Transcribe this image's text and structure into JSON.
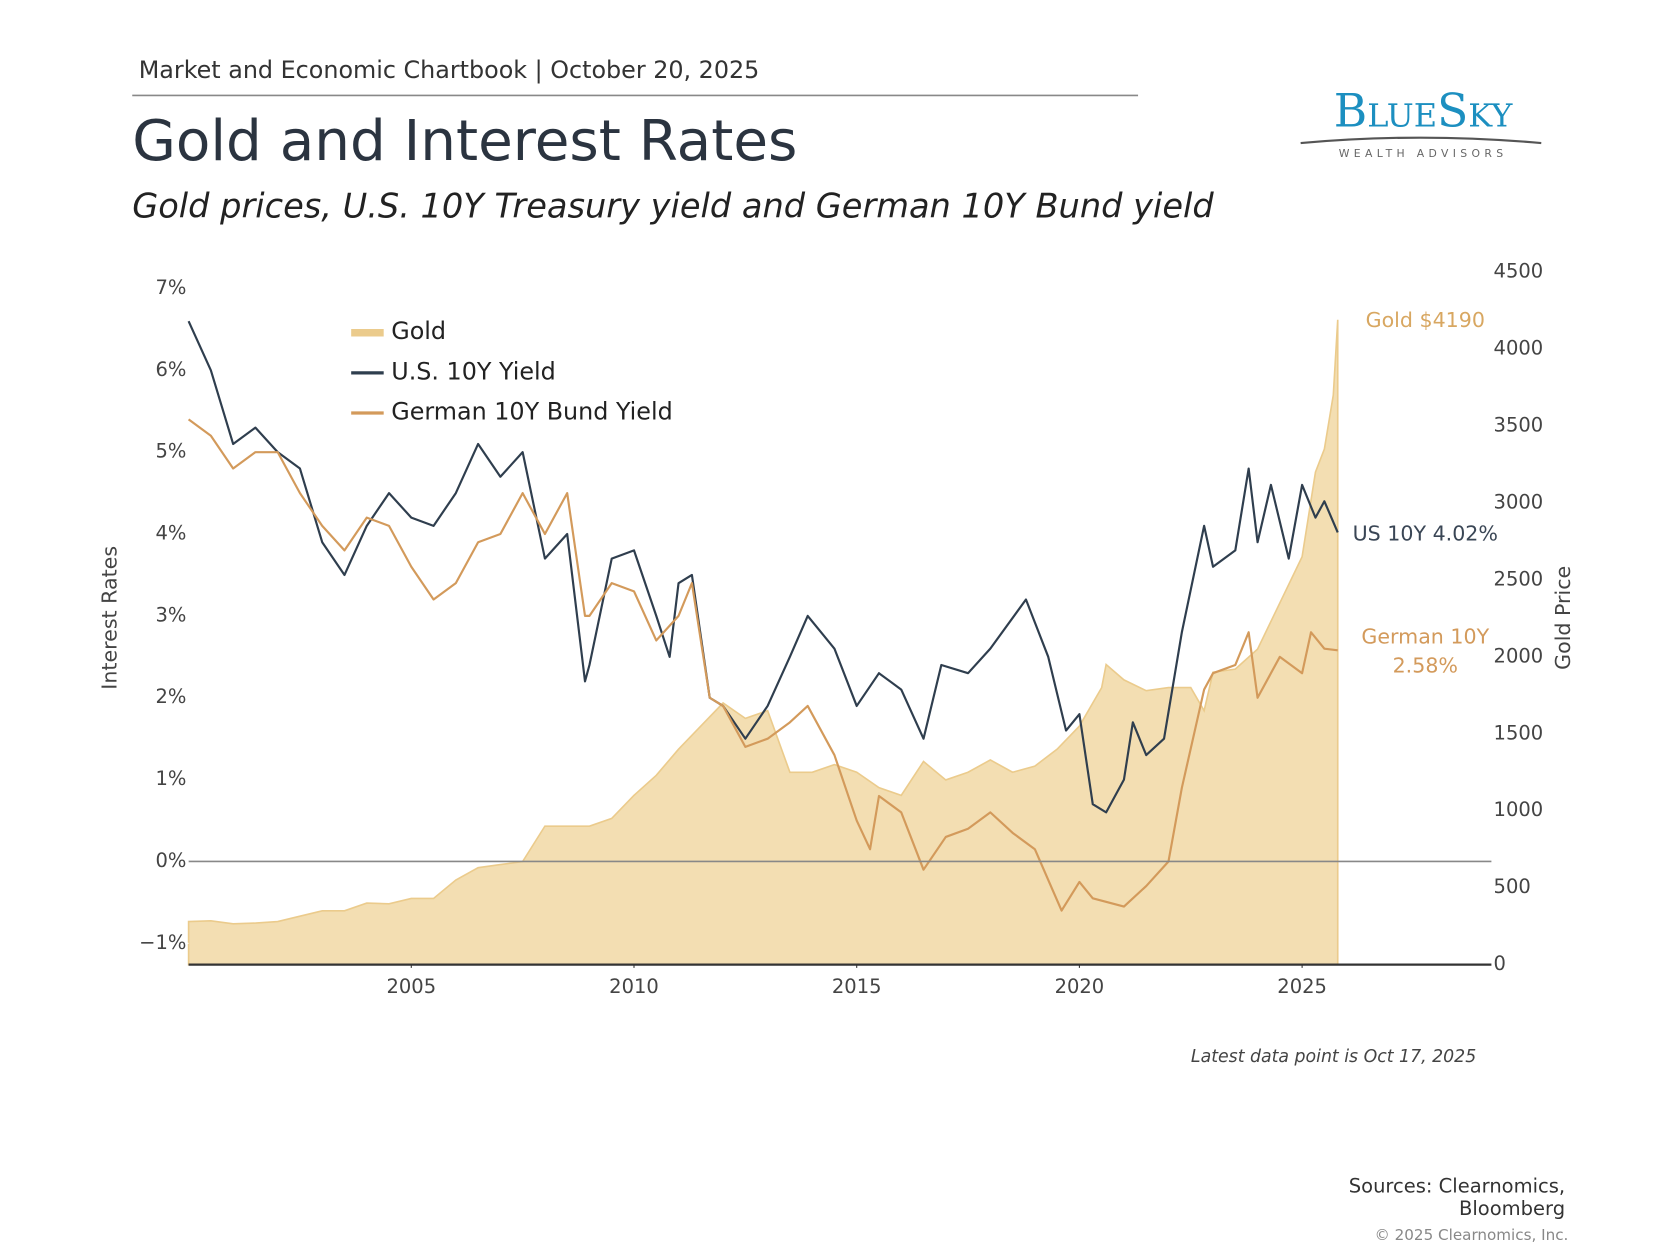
{
  "header": {
    "kicker": "Market and Economic Chartbook | October 20, 2025",
    "title": "Gold and Interest Rates",
    "subtitle": "Gold prices, U.S. 10Y Treasury yield and German 10Y Bund yield",
    "logo": "BlueSky",
    "logo_tagline": "WEALTH ADVISORS"
  },
  "chart_data": {
    "type": "line",
    "ylabel": "Interest Rates",
    "y2label": "Gold Price",
    "xlim": [
      2000,
      2029.25
    ],
    "xticks": [
      2005,
      2010,
      2015,
      2020,
      2025
    ],
    "ylim": [
      -1.26,
      7.2
    ],
    "yticks": [
      {
        "value": -1,
        "label": "−1%"
      },
      {
        "value": 0,
        "label": "0%"
      },
      {
        "value": 1,
        "label": "1%"
      },
      {
        "value": 2,
        "label": "2%"
      },
      {
        "value": 3,
        "label": "3%"
      },
      {
        "value": 4,
        "label": "4%"
      },
      {
        "value": 5,
        "label": "5%"
      },
      {
        "value": 6,
        "label": "6%"
      },
      {
        "value": 7,
        "label": "7%"
      }
    ],
    "y2lim": [
      0,
      4500
    ],
    "y2ticks": [
      0,
      500,
      1000,
      1500,
      2000,
      2500,
      3000,
      3500,
      4000,
      4500
    ],
    "zero_line": true,
    "grid": false,
    "legend": "upper left",
    "series": [
      {
        "name": "Gold",
        "kind": "area",
        "axis": "y2",
        "color": "#f3deb2",
        "x": [
          2000,
          2000.5,
          2001,
          2001.5,
          2002,
          2002.5,
          2003,
          2003.5,
          2004,
          2004.5,
          2005,
          2005.5,
          2006,
          2006.5,
          2007,
          2007.5,
          2008,
          2008.5,
          2009,
          2009.5,
          2010,
          2010.5,
          2011,
          2011.5,
          2012,
          2012.5,
          2013,
          2013.5,
          2014,
          2014.5,
          2015,
          2015.5,
          2016,
          2016.5,
          2017,
          2017.5,
          2018,
          2018.5,
          2019,
          2019.5,
          2020,
          2020.5,
          2020.6,
          2021,
          2021.5,
          2022,
          2022.5,
          2022.8,
          2023,
          2023.5,
          2024,
          2024.5,
          2025,
          2025.3,
          2025.5,
          2025.7,
          2025.8
        ],
        "values": [
          280,
          285,
          265,
          270,
          280,
          315,
          350,
          350,
          400,
          395,
          430,
          430,
          550,
          630,
          650,
          670,
          900,
          900,
          900,
          950,
          1100,
          1230,
          1400,
          1550,
          1700,
          1600,
          1650,
          1250,
          1250,
          1300,
          1250,
          1150,
          1100,
          1320,
          1200,
          1250,
          1330,
          1250,
          1290,
          1400,
          1550,
          1800,
          1950,
          1850,
          1780,
          1800,
          1800,
          1650,
          1900,
          1920,
          2050,
          2350,
          2650,
          3200,
          3350,
          3700,
          4190
        ]
      },
      {
        "name": "U.S. 10Y Yield",
        "kind": "line",
        "color": "#2f3e4e",
        "x": [
          2000,
          2000.5,
          2001,
          2001.5,
          2002,
          2002.5,
          2003,
          2003.5,
          2004,
          2004.5,
          2005,
          2005.5,
          2006,
          2006.5,
          2007,
          2007.5,
          2008,
          2008.5,
          2008.9,
          2009,
          2009.5,
          2010,
          2010.5,
          2010.8,
          2011,
          2011.3,
          2011.7,
          2012,
          2012.5,
          2013,
          2013.5,
          2013.9,
          2014.5,
          2015,
          2015.5,
          2016,
          2016.5,
          2016.9,
          2017.5,
          2018,
          2018.8,
          2019.3,
          2019.7,
          2020,
          2020.3,
          2020.6,
          2021,
          2021.2,
          2021.5,
          2021.9,
          2022.3,
          2022.8,
          2023,
          2023.5,
          2023.8,
          2024,
          2024.3,
          2024.7,
          2025,
          2025.3,
          2025.5,
          2025.8
        ],
        "values": [
          6.6,
          6.0,
          5.1,
          5.3,
          5.0,
          4.8,
          3.9,
          3.5,
          4.1,
          4.5,
          4.2,
          4.1,
          4.5,
          5.1,
          4.7,
          5.0,
          3.7,
          4.0,
          2.2,
          2.4,
          3.7,
          3.8,
          3.0,
          2.5,
          3.4,
          3.5,
          2.0,
          1.9,
          1.5,
          1.9,
          2.5,
          3.0,
          2.6,
          1.9,
          2.3,
          2.1,
          1.5,
          2.4,
          2.3,
          2.6,
          3.2,
          2.5,
          1.6,
          1.8,
          0.7,
          0.6,
          1.0,
          1.7,
          1.3,
          1.5,
          2.8,
          4.1,
          3.6,
          3.8,
          4.8,
          3.9,
          4.6,
          3.7,
          4.6,
          4.2,
          4.4,
          4.02
        ]
      },
      {
        "name": "German 10Y Bund Yield",
        "kind": "line",
        "color": "#d39a5b",
        "x": [
          2000,
          2000.5,
          2001,
          2001.5,
          2002,
          2002.5,
          2003,
          2003.5,
          2004,
          2004.5,
          2005,
          2005.5,
          2006,
          2006.5,
          2007,
          2007.5,
          2008,
          2008.5,
          2008.9,
          2009,
          2009.5,
          2010,
          2010.5,
          2011,
          2011.3,
          2011.7,
          2012,
          2012.5,
          2013,
          2013.5,
          2013.9,
          2014.5,
          2015,
          2015.3,
          2015.5,
          2016,
          2016.5,
          2017,
          2017.5,
          2018,
          2018.5,
          2019,
          2019.6,
          2020,
          2020.3,
          2021,
          2021.5,
          2022,
          2022.3,
          2022.8,
          2023,
          2023.5,
          2023.8,
          2024,
          2024.5,
          2025,
          2025.2,
          2025.5,
          2025.8
        ],
        "values": [
          5.4,
          5.2,
          4.8,
          5.0,
          5.0,
          4.5,
          4.1,
          3.8,
          4.2,
          4.1,
          3.6,
          3.2,
          3.4,
          3.9,
          4.0,
          4.5,
          4.0,
          4.5,
          3.0,
          3.0,
          3.4,
          3.3,
          2.7,
          3.0,
          3.4,
          2.0,
          1.9,
          1.4,
          1.5,
          1.7,
          1.9,
          1.3,
          0.5,
          0.15,
          0.8,
          0.6,
          -0.1,
          0.3,
          0.4,
          0.6,
          0.35,
          0.15,
          -0.6,
          -0.25,
          -0.45,
          -0.55,
          -0.3,
          0.0,
          0.9,
          2.1,
          2.3,
          2.4,
          2.8,
          2.0,
          2.5,
          2.3,
          2.8,
          2.6,
          2.58
        ]
      }
    ],
    "annotations": [
      "Gold $4190",
      "US 10Y 4.02%",
      "German 10Y",
      "2.58%"
    ],
    "note": "Latest data point is Oct 17, 2025"
  },
  "footer": {
    "sources": [
      "Sources: Clearnomics,",
      "Bloomberg"
    ],
    "copyright": "© 2025 Clearnomics, Inc."
  }
}
